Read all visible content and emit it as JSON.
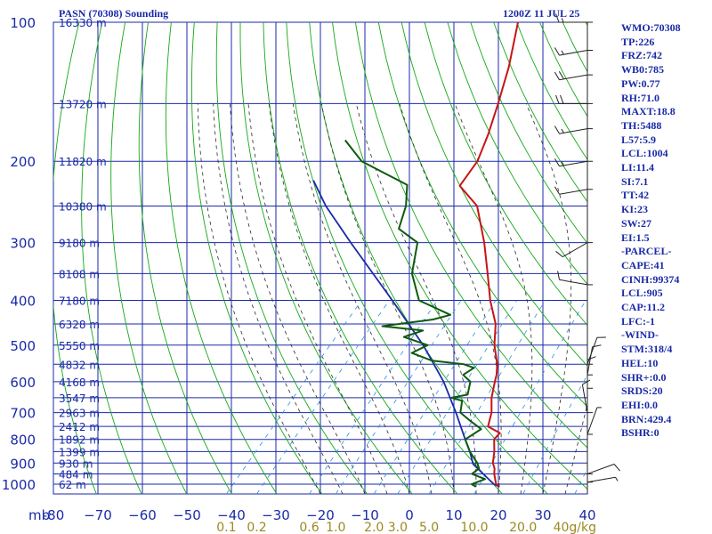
{
  "header": {
    "title": "PASN (70308) Sounding",
    "datetime": "1200Z 11 JUL 25"
  },
  "stats": [
    "WMO:70308",
    "TP:226",
    "FRZ:742",
    "WB0:785",
    "PW:0.77",
    "RH:71.0",
    "MAXT:18.8",
    "TH:5488",
    "L57:5.9",
    "LCL:1004",
    "LI:11.4",
    "SI:7.1",
    "TT:42",
    "KI:23",
    "SW:27",
    "EI:1.5",
    "-PARCEL-",
    "CAPE:41",
    "CINH:99374",
    "LCL:905",
    "CAP:11.2",
    "LFC:-1",
    "-WIND-",
    "STM:318/4",
    "HEL:10",
    "SHR+:0.0",
    "SRDS:20",
    "EHI:0.0",
    "BRN:429.4",
    "BSHR:0"
  ],
  "colors": {
    "grid": "#1a2aa8",
    "dry_adiabat": "#14a814",
    "moist_adiabat": "#2a2a2a",
    "mixing_ratio": "#2a8fe0",
    "temperature": "#c81414",
    "dewpoint": "#0c5a0c",
    "parcel": "#1a2aa8",
    "wind": "#202020",
    "mixing_label": "#9a8a20"
  },
  "chart_data": {
    "type": "skew-t",
    "pressure_unit_label": "mb",
    "pressure_ticks": [
      100,
      200,
      300,
      400,
      500,
      600,
      700,
      800,
      900,
      1000
    ],
    "temperature_ticks": [
      -80,
      -70,
      -60,
      -50,
      -40,
      -30,
      -20,
      -10,
      0,
      10,
      20,
      30,
      40
    ],
    "temperature_tick_labels": [
      "-80",
      "−70",
      "−60",
      "−50",
      "−40",
      "−30",
      "−20",
      "−10",
      "0",
      "10",
      "20",
      "30",
      "40"
    ],
    "temperature_range": [
      -80,
      40
    ],
    "height_labels": [
      {
        "p": 100,
        "text": "16330 m"
      },
      {
        "p": 150,
        "text": "13720 m"
      },
      {
        "p": 200,
        "text": "11820 m"
      },
      {
        "p": 250,
        "text": "10380 m"
      },
      {
        "p": 300,
        "text": "9180 m"
      },
      {
        "p": 350,
        "text": "8108 m"
      },
      {
        "p": 400,
        "text": "7180 m"
      },
      {
        "p": 450,
        "text": "6328 m"
      },
      {
        "p": 500,
        "text": "5550 m"
      },
      {
        "p": 550,
        "text": "4832 m"
      },
      {
        "p": 600,
        "text": "4168 m"
      },
      {
        "p": 650,
        "text": "3547 m"
      },
      {
        "p": 700,
        "text": "2963 m"
      },
      {
        "p": 750,
        "text": "2412 m"
      },
      {
        "p": 800,
        "text": "1892 m"
      },
      {
        "p": 850,
        "text": "1399 m"
      },
      {
        "p": 900,
        "text": "930 m"
      },
      {
        "p": 950,
        "text": "484 m"
      },
      {
        "p": 1000,
        "text": "62 m"
      }
    ],
    "mixing_ratio_labels": [
      "0.1",
      "0.2",
      "0.6",
      "1.0",
      "2.0",
      "3.0",
      "5.0",
      "10.0",
      "20.0",
      "40g/kg"
    ],
    "mixing_ratio_values": [
      0.1,
      0.2,
      0.6,
      1.0,
      2.0,
      3.0,
      5.0,
      10.0,
      20.0,
      40.0
    ],
    "temperature_profile": [
      {
        "p": 1013,
        "t": 18.8
      },
      {
        "p": 1000,
        "t": 17.5
      },
      {
        "p": 950,
        "t": 15.0
      },
      {
        "p": 925,
        "t": 14.0
      },
      {
        "p": 900,
        "t": 12.5
      },
      {
        "p": 850,
        "t": 10.5
      },
      {
        "p": 800,
        "t": 8.0
      },
      {
        "p": 775,
        "t": 8.0
      },
      {
        "p": 750,
        "t": 4.0
      },
      {
        "p": 700,
        "t": 2.0
      },
      {
        "p": 650,
        "t": -1.0
      },
      {
        "p": 600,
        "t": -3.5
      },
      {
        "p": 580,
        "t": -4.5
      },
      {
        "p": 550,
        "t": -6.5
      },
      {
        "p": 500,
        "t": -11.0
      },
      {
        "p": 450,
        "t": -15.0
      },
      {
        "p": 400,
        "t": -21.0
      },
      {
        "p": 350,
        "t": -27.0
      },
      {
        "p": 300,
        "t": -34.0
      },
      {
        "p": 250,
        "t": -43.0
      },
      {
        "p": 226,
        "t": -51.0
      },
      {
        "p": 200,
        "t": -52.0
      },
      {
        "p": 175,
        "t": -55.0
      },
      {
        "p": 150,
        "t": -59.0
      },
      {
        "p": 125,
        "t": -64.0
      },
      {
        "p": 100,
        "t": -71.0
      }
    ],
    "dewpoint_profile": [
      {
        "p": 1013,
        "t": 13.5
      },
      {
        "p": 1000,
        "t": 12.0
      },
      {
        "p": 975,
        "t": 14.0
      },
      {
        "p": 950,
        "t": 10.0
      },
      {
        "p": 925,
        "t": 10.5
      },
      {
        "p": 900,
        "t": 9.0
      },
      {
        "p": 850,
        "t": 5.0
      },
      {
        "p": 800,
        "t": 1.5
      },
      {
        "p": 760,
        "t": 3.0
      },
      {
        "p": 730,
        "t": -1.0
      },
      {
        "p": 700,
        "t": -5.0
      },
      {
        "p": 660,
        "t": -7.0
      },
      {
        "p": 650,
        "t": -10.0
      },
      {
        "p": 640,
        "t": -7.0
      },
      {
        "p": 600,
        "t": -9.0
      },
      {
        "p": 580,
        "t": -12.0
      },
      {
        "p": 560,
        "t": -11.0
      },
      {
        "p": 550,
        "t": -14.0
      },
      {
        "p": 540,
        "t": -22.0
      },
      {
        "p": 520,
        "t": -28.0
      },
      {
        "p": 500,
        "t": -26.0
      },
      {
        "p": 480,
        "t": -33.0
      },
      {
        "p": 465,
        "t": -30.0
      },
      {
        "p": 455,
        "t": -40.0
      },
      {
        "p": 440,
        "t": -30.0
      },
      {
        "p": 430,
        "t": -27.0
      },
      {
        "p": 400,
        "t": -37.0
      },
      {
        "p": 350,
        "t": -44.0
      },
      {
        "p": 300,
        "t": -49.0
      },
      {
        "p": 280,
        "t": -56.0
      },
      {
        "p": 250,
        "t": -59.0
      },
      {
        "p": 225,
        "t": -63.0
      },
      {
        "p": 200,
        "t": -78.0
      },
      {
        "p": 180,
        "t": -86.0
      }
    ],
    "parcel_profile": [
      {
        "p": 1013,
        "t": 18.8
      },
      {
        "p": 1000,
        "t": 17.0
      },
      {
        "p": 950,
        "t": 12.5
      },
      {
        "p": 905,
        "t": 8.3
      },
      {
        "p": 850,
        "t": 5.0
      },
      {
        "p": 800,
        "t": 1.5
      },
      {
        "p": 700,
        "t": -6.0
      },
      {
        "p": 600,
        "t": -15.0
      },
      {
        "p": 500,
        "t": -27.0
      },
      {
        "p": 400,
        "t": -43.0
      },
      {
        "p": 300,
        "t": -64.0
      },
      {
        "p": 250,
        "t": -77.0
      },
      {
        "p": 220,
        "t": -85.0
      }
    ],
    "wind_barbs": [
      {
        "p": 100,
        "dir": 90,
        "spd": 15
      },
      {
        "p": 115,
        "dir": 80,
        "spd": 15
      },
      {
        "p": 130,
        "dir": 80,
        "spd": 20
      },
      {
        "p": 150,
        "dir": 90,
        "spd": 20
      },
      {
        "p": 170,
        "dir": 80,
        "spd": 15
      },
      {
        "p": 200,
        "dir": 80,
        "spd": 15
      },
      {
        "p": 230,
        "dir": 80,
        "spd": 10
      },
      {
        "p": 300,
        "dir": 60,
        "spd": 10
      },
      {
        "p": 370,
        "dir": 100,
        "spd": 10
      },
      {
        "p": 550,
        "dir": 200,
        "spd": 10
      },
      {
        "p": 580,
        "dir": 190,
        "spd": 10
      },
      {
        "p": 620,
        "dir": 180,
        "spd": 10
      },
      {
        "p": 700,
        "dir": 170,
        "spd": 10
      },
      {
        "p": 780,
        "dir": 200,
        "spd": 5
      },
      {
        "p": 950,
        "dir": 250,
        "spd": 10
      },
      {
        "p": 990,
        "dir": 260,
        "spd": 5
      }
    ]
  }
}
